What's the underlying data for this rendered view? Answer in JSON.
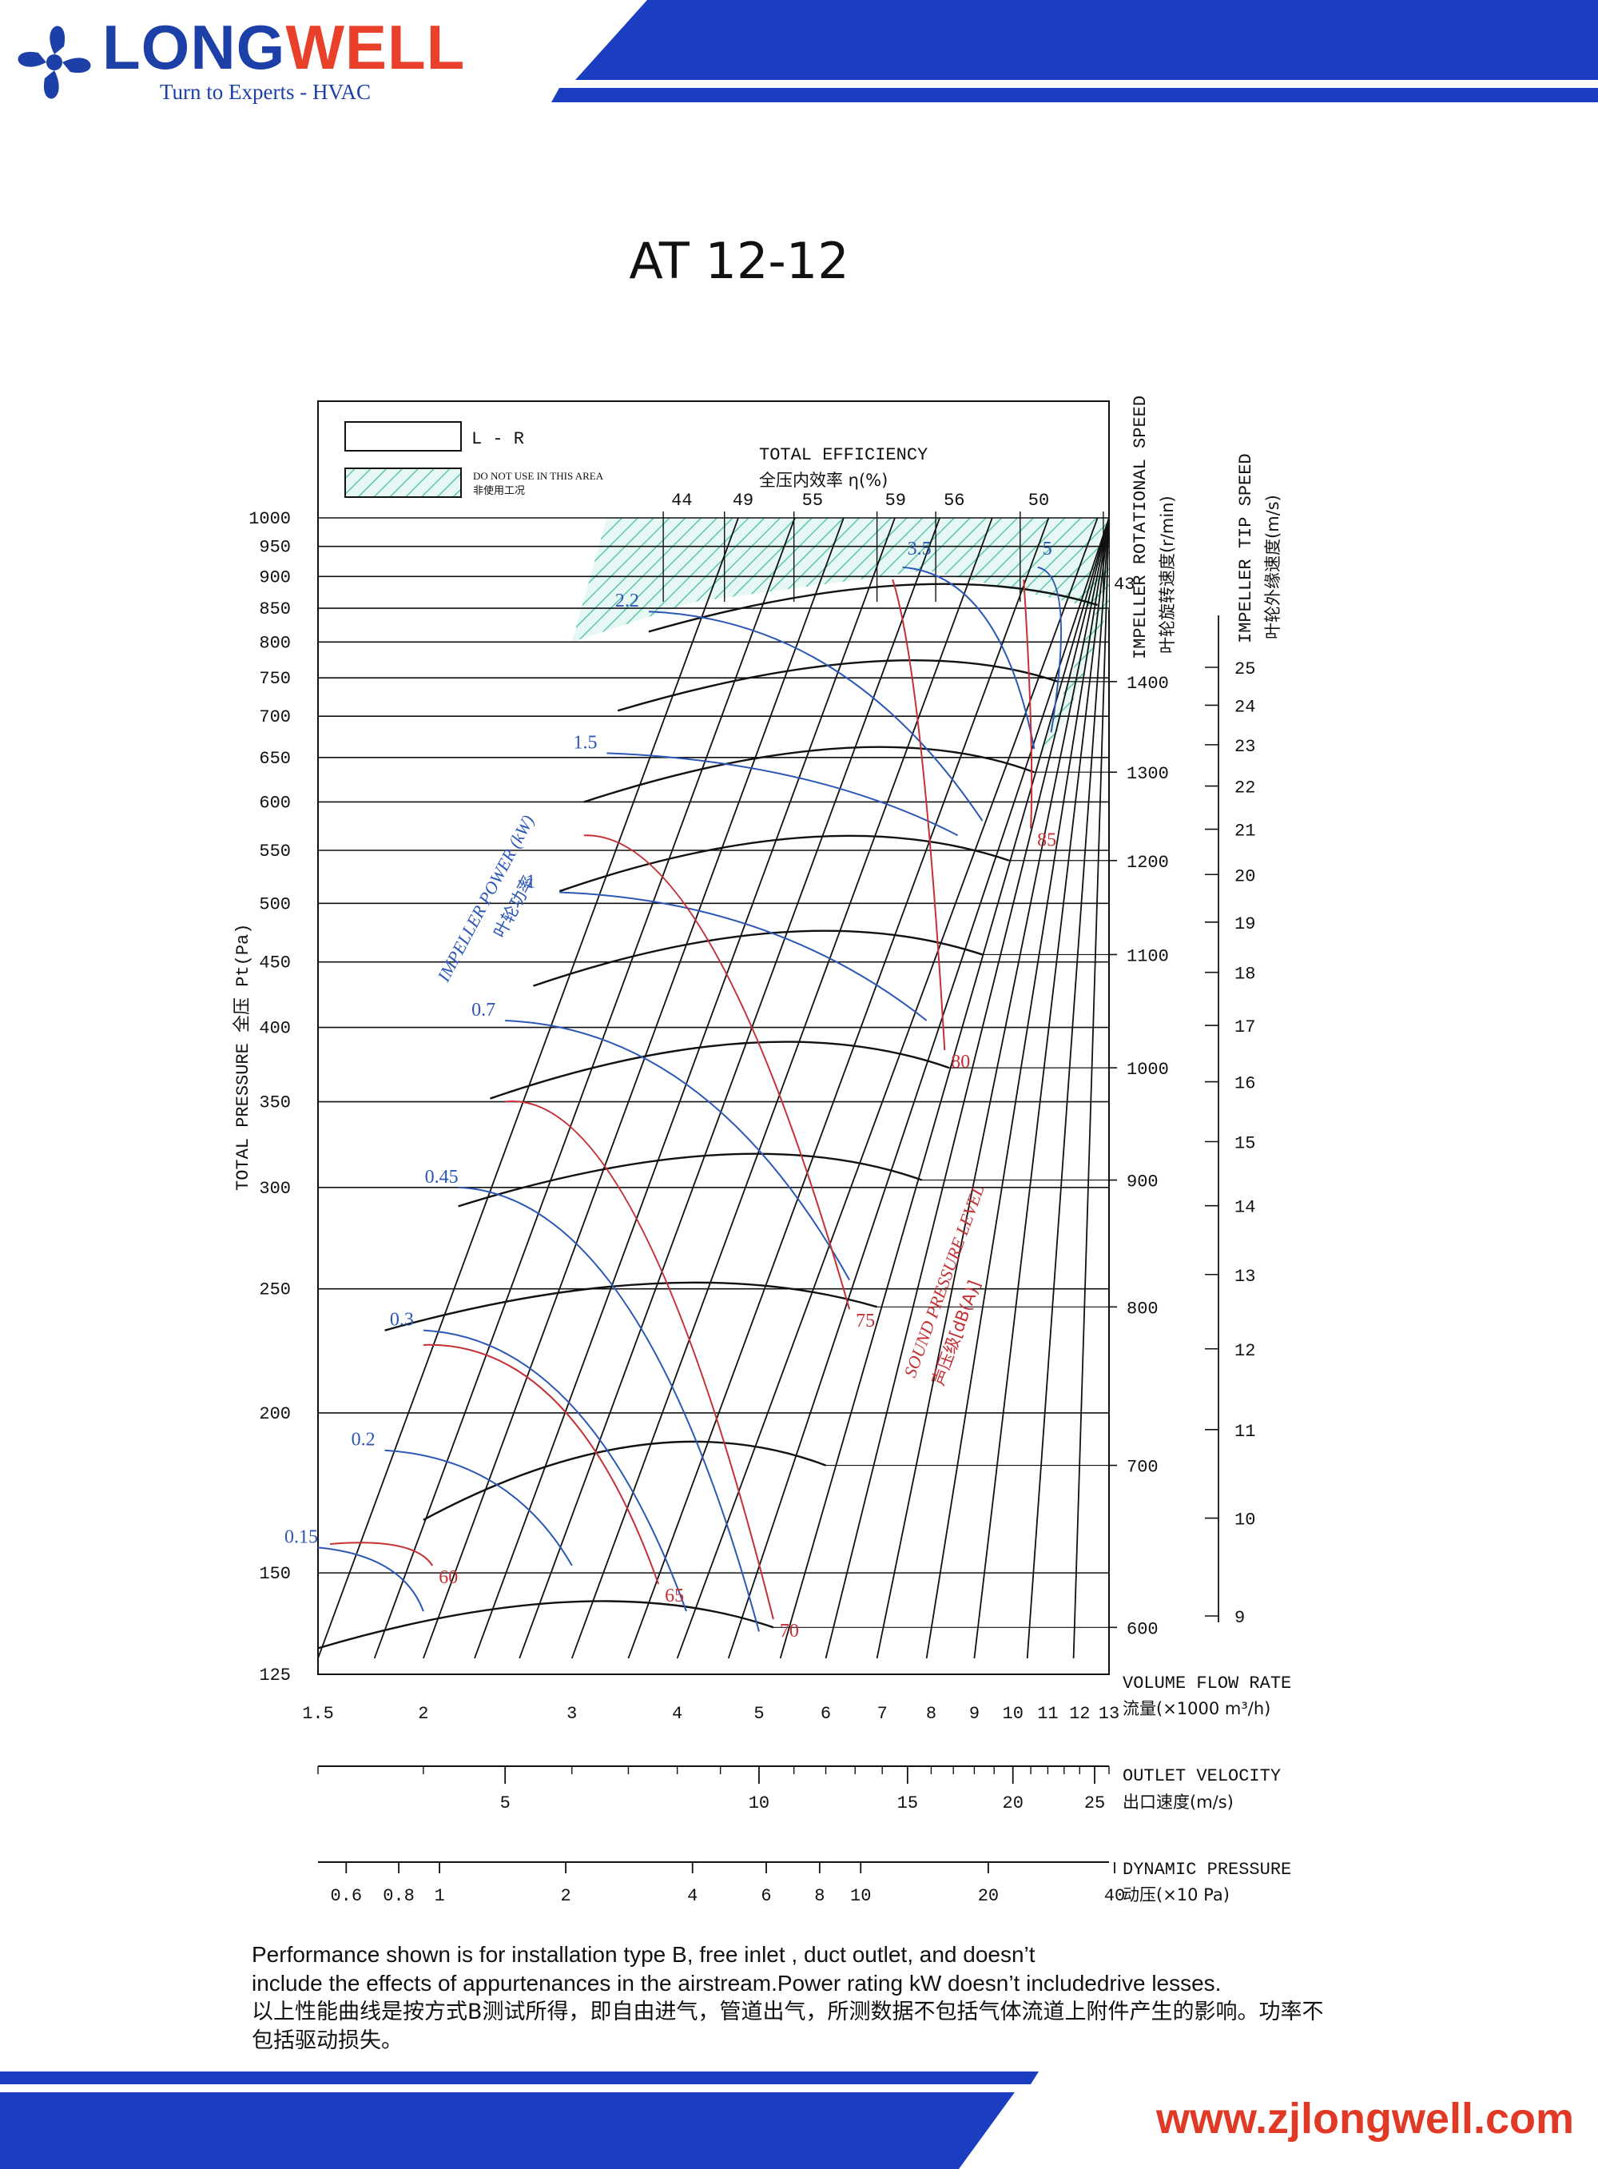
{
  "brand": {
    "name_part1": "LONG",
    "name_part2": "WELL",
    "tagline": "Turn to Experts - HVAC",
    "website": "www.zjlongwell.com",
    "colors": {
      "blue": "#1c3fa8",
      "red": "#e8402a"
    },
    "icon": "fan-logo-icon"
  },
  "chart_data": {
    "type": "line",
    "title": "AT  12-12",
    "legend": {
      "lr_label": "L - R",
      "hatch_label_en": "DO NOT USE IN THIS AREA",
      "hatch_label_cn": "非使用工况"
    },
    "x_axis": {
      "label_en": "VOLUME FLOW RATE",
      "label_cn": "流量(×1000 m³/h)",
      "scale": "log",
      "ticks": [
        "1.5",
        "2",
        "3",
        "4",
        "5",
        "6",
        "7",
        "8",
        "9",
        "10",
        "11",
        "12",
        "13"
      ],
      "range": [
        1.5,
        13
      ]
    },
    "y_axis": {
      "label": "TOTAL PRESSURE 全压 Pt(Pa)",
      "scale": "log",
      "ticks": [
        "125",
        "150",
        "200",
        "250",
        "300",
        "350",
        "400",
        "450",
        "500",
        "550",
        "600",
        "650",
        "700",
        "750",
        "800",
        "850",
        "900",
        "950",
        "1000"
      ],
      "range": [
        125,
        1000
      ]
    },
    "speed_axis": {
      "label_en": "IMPELLER ROTATIONAL SPEED",
      "label_cn": "叶轮旋转速度(r/min)",
      "ticks": [
        "600",
        "700",
        "800",
        "900",
        "1000",
        "1100",
        "1200",
        "1300",
        "1400"
      ]
    },
    "tip_speed_axis": {
      "label_en": "IMPELLER TIP SPEED",
      "label_cn": "叶轮外缘速度(m/s)",
      "ticks": [
        "9",
        "10",
        "11",
        "12",
        "13",
        "14",
        "15",
        "16",
        "17",
        "18",
        "19",
        "20",
        "21",
        "22",
        "23",
        "24",
        "25"
      ]
    },
    "velocity_axis": {
      "label_en": "OUTLET VELOCITY",
      "label_cn": "出口速度(m/s)",
      "ticks": [
        "5",
        "10",
        "15",
        "20",
        "25"
      ]
    },
    "dynamic_pressure_axis": {
      "label_en": "DYNAMIC PRESSURE",
      "label_cn": "动压(×10 Pa)",
      "ticks": [
        "0.6",
        "0.8",
        "1",
        "2",
        "4",
        "6",
        "8",
        "10",
        "20",
        "40"
      ]
    },
    "efficiency": {
      "label_en": "TOTAL EFFICIENCY",
      "label_cn": "全压内效率 η(%)",
      "values": [
        "44",
        "49",
        "55",
        "59",
        "56",
        "50",
        "43"
      ]
    },
    "power": {
      "label_en": "IMPELLER POWER (kW)",
      "label_cn": "叶轮功率",
      "values": [
        "0.15",
        "0.2",
        "0.3",
        "0.45",
        "0.7",
        "1",
        "1.5",
        "2.2",
        "3.5",
        "5"
      ]
    },
    "sound": {
      "label_en": "SOUND PRESSURE LEVEL",
      "label_cn": "声压级[dB(A)]",
      "values": [
        "60",
        "65",
        "70",
        "75",
        "80",
        "85"
      ]
    },
    "speed_curves": [
      {
        "rpm": 600,
        "points": [
          [
            1.5,
            131
          ],
          [
            3.2,
            148
          ],
          [
            5.2,
            136
          ]
        ]
      },
      {
        "rpm": 700,
        "points": [
          [
            2.0,
            165
          ],
          [
            3.7,
            200
          ],
          [
            6.0,
            182
          ]
        ]
      },
      {
        "rpm": 800,
        "points": [
          [
            1.8,
            232
          ],
          [
            4.0,
            262
          ],
          [
            6.9,
            242
          ]
        ]
      },
      {
        "rpm": 900,
        "points": [
          [
            2.2,
            290
          ],
          [
            4.8,
            332
          ],
          [
            7.8,
            304
          ]
        ]
      },
      {
        "rpm": 1000,
        "points": [
          [
            2.4,
            352
          ],
          [
            5.1,
            407
          ],
          [
            8.4,
            372
          ]
        ]
      },
      {
        "rpm": 1100,
        "points": [
          [
            2.7,
            431
          ],
          [
            5.6,
            495
          ],
          [
            9.2,
            456
          ]
        ]
      },
      {
        "rpm": 1200,
        "points": [
          [
            2.9,
            511
          ],
          [
            6.0,
            588
          ],
          [
            9.9,
            540
          ]
        ]
      },
      {
        "rpm": 1300,
        "points": [
          [
            3.1,
            600
          ],
          [
            6.7,
            690
          ],
          [
            10.6,
            633
          ]
        ]
      },
      {
        "rpm": 1400,
        "points": [
          [
            3.4,
            707
          ],
          [
            7.3,
            800
          ],
          [
            11.3,
            745
          ]
        ]
      },
      {
        "rpm": 1500,
        "points": [
          [
            3.7,
            815
          ],
          [
            7.9,
            916
          ],
          [
            12.6,
            855
          ]
        ]
      }
    ],
    "colors": {
      "grid": "#111111",
      "speed_curve": "#111111",
      "power_line": "#2b57b5",
      "sound_line": "#c53035",
      "hatch": "#5cc7b0"
    }
  },
  "notes": {
    "en_line1": "Performance shown is for installation type B, free inlet , duct outlet, and doesn’t",
    "en_line2": "include the effects of appurtenances in the airstream.Power rating kW doesn’t includedrive lesses.",
    "cn_line1": "以上性能曲线是按方式B测试所得，即自由进气，管道出气，所测数据不包括气体流道上附件产生的影响。功率不",
    "cn_line2": "包括驱动损失。"
  }
}
